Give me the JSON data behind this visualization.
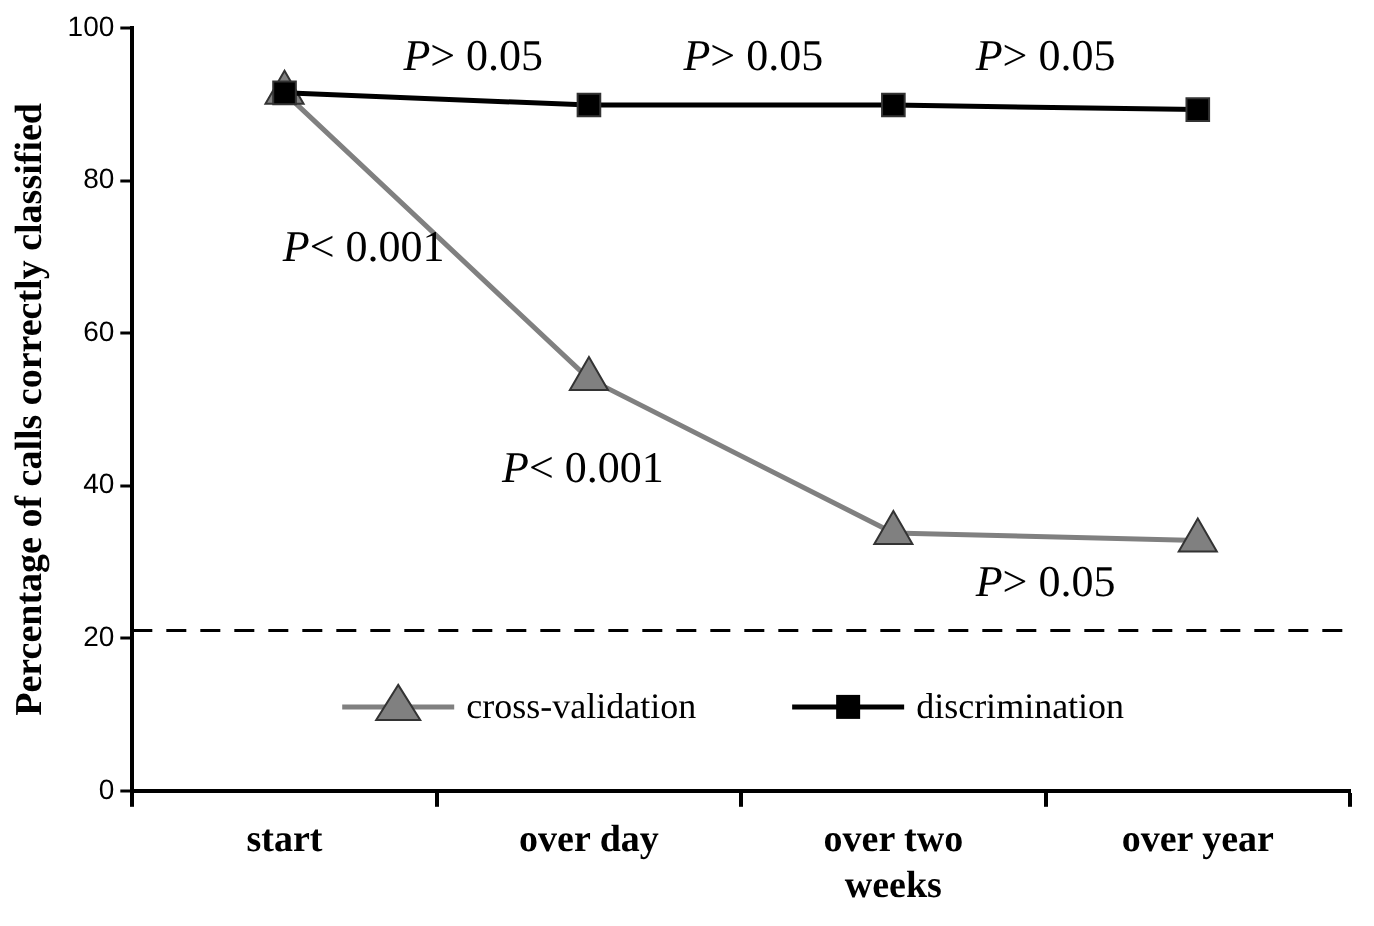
{
  "chart_data": {
    "type": "line",
    "ylabel": "Percentage of calls correctly classified",
    "categories": [
      "start",
      "over day",
      "over two weeks",
      "over year"
    ],
    "series": [
      {
        "name": "cross-validation",
        "color": "#808080",
        "marker": "triangle",
        "values": [
          91.5,
          54.0,
          33.8,
          32.8
        ]
      },
      {
        "name": "discrimination",
        "color": "#000000",
        "marker": "square",
        "values": [
          91.5,
          89.9,
          89.9,
          89.3
        ]
      }
    ],
    "ylim": [
      0,
      100
    ],
    "yticks": [
      0,
      20,
      40,
      60,
      80,
      100
    ],
    "ref_lines": [
      {
        "axis": "y",
        "value": 21,
        "color": "#000000",
        "line_style": "dashed"
      }
    ],
    "annotations": [
      "P> 0.05",
      "P> 0.05",
      "P> 0.05",
      "P< 0.001",
      "P< 0.001",
      "P> 0.05"
    ],
    "grid": false,
    "legend": "bottom",
    "line_style": "solid"
  }
}
